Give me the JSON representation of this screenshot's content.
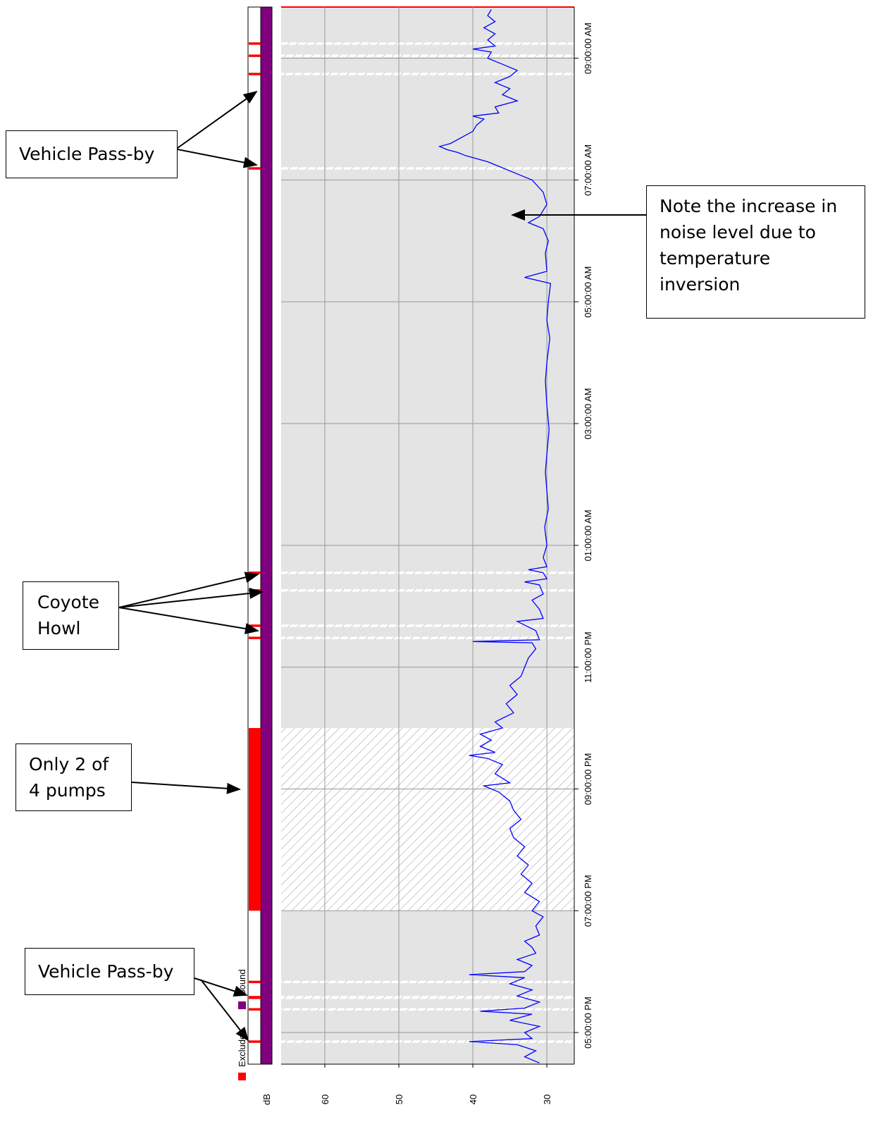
{
  "chart_data": {
    "type": "line",
    "value_axis_label": "dB",
    "value_axis_reversed": true,
    "ylim": [
      26.3,
      65.9
    ],
    "yticks": [
      30,
      40,
      50,
      60
    ],
    "xlim": [
      16.48,
      33.84
    ],
    "xticks": [
      {
        "value": 17,
        "label": "05:00:00 PM"
      },
      {
        "value": 19,
        "label": "07:00:00 PM"
      },
      {
        "value": 21,
        "label": "09:00:00 PM"
      },
      {
        "value": 23,
        "label": "11:00:00 PM"
      },
      {
        "value": 25,
        "label": "01:00:00 AM"
      },
      {
        "value": 27,
        "label": "03:00:00 AM"
      },
      {
        "value": 29,
        "label": "05:00:00 AM"
      },
      {
        "value": 31,
        "label": "07:00:00 AM"
      },
      {
        "value": 33,
        "label": "09:00:00 AM"
      }
    ],
    "grid": true,
    "series": [
      {
        "name": "Sound",
        "color": "#0000ff",
        "band_color": "#800080",
        "x": [
          16.5,
          16.6,
          16.7,
          16.8,
          16.85,
          16.9,
          17.0,
          17.1,
          17.2,
          17.3,
          17.35,
          17.4,
          17.5,
          17.6,
          17.7,
          17.8,
          17.9,
          17.95,
          18.0,
          18.1,
          18.2,
          18.3,
          18.4,
          18.5,
          18.6,
          18.75,
          18.9,
          19.0,
          19.15,
          19.3,
          19.45,
          19.6,
          19.75,
          19.9,
          20.05,
          20.2,
          20.35,
          20.5,
          20.65,
          20.8,
          20.95,
          21.05,
          21.1,
          21.25,
          21.4,
          21.5,
          21.55,
          21.6,
          21.7,
          21.8,
          21.9,
          22.0,
          22.1,
          22.25,
          22.4,
          22.55,
          22.7,
          22.85,
          23.0,
          23.15,
          23.3,
          23.4,
          23.42,
          23.45,
          23.6,
          23.75,
          23.8,
          23.95,
          24.1,
          24.2,
          24.35,
          24.4,
          24.45,
          24.55,
          24.6,
          24.65,
          24.8,
          25.0,
          25.3,
          25.6,
          25.9,
          26.2,
          26.5,
          26.9,
          27.3,
          27.7,
          28.0,
          28.4,
          28.7,
          29.0,
          29.3,
          29.4,
          29.5,
          29.8,
          30.0,
          30.2,
          30.3,
          30.4,
          30.6,
          30.8,
          31.0,
          31.1,
          31.2,
          31.3,
          31.4,
          31.45,
          31.5,
          31.55,
          31.6,
          31.7,
          31.8,
          31.9,
          32.0,
          32.05,
          32.1,
          32.2,
          32.3,
          32.4,
          32.5,
          32.6,
          32.7,
          32.8,
          32.9,
          33.0,
          33.1,
          33.15,
          33.2,
          33.3,
          33.4,
          33.5,
          33.6,
          33.7,
          33.8
        ],
        "values": [
          31,
          33,
          31.5,
          34,
          40.5,
          32,
          33,
          31,
          35,
          32,
          39,
          33,
          31,
          34,
          32,
          35,
          33,
          40.5,
          33,
          32,
          34,
          31.5,
          32,
          33,
          31,
          31.5,
          30.5,
          32,
          31,
          33,
          32,
          33.5,
          32.5,
          34,
          33,
          34.5,
          35,
          33.5,
          34.5,
          35,
          36.5,
          38.5,
          35,
          37,
          36,
          38,
          40.5,
          37,
          39,
          37.5,
          39,
          36,
          37,
          34.5,
          35.5,
          34,
          35,
          33.5,
          33,
          32.5,
          31.5,
          32,
          40,
          31,
          31.5,
          34,
          30.5,
          31,
          32,
          30.5,
          31,
          33,
          30,
          30.5,
          32.5,
          30,
          30.5,
          30,
          30.3,
          29.8,
          30,
          30.2,
          30,
          29.7,
          30,
          30.2,
          30,
          29.6,
          30,
          29.8,
          29.5,
          33,
          30,
          30.2,
          29.8,
          30.5,
          32.5,
          31,
          30,
          30.5,
          32,
          34,
          36,
          38,
          41,
          42,
          43.5,
          44.5,
          43,
          41.5,
          40,
          39.5,
          38.5,
          40,
          36.5,
          37,
          34,
          36,
          35,
          37,
          35,
          34,
          36,
          38,
          37.5,
          40,
          37,
          38,
          37,
          38.5,
          37,
          38,
          37.5
        ]
      }
    ],
    "exclude": {
      "name": "Exclude",
      "color": "#ff0000",
      "ranges": [
        [
          16.83,
          16.87
        ],
        [
          17.36,
          17.4
        ],
        [
          17.55,
          17.6
        ],
        [
          17.81,
          17.85
        ],
        [
          19.0,
          22.0
        ],
        [
          23.46,
          23.5
        ],
        [
          23.66,
          23.7
        ],
        [
          24.24,
          24.28
        ],
        [
          24.53,
          24.57
        ],
        [
          31.17,
          31.21
        ],
        [
          32.72,
          32.76
        ],
        [
          33.02,
          33.06
        ],
        [
          33.22,
          33.26
        ]
      ]
    },
    "annotations": [
      "Vehicle Pass-by",
      "Note the increase in noise level due to temperature inversion",
      "Coyote Howl",
      "Only 2 of 4 pumps",
      "Vehicle Pass-by"
    ]
  }
}
